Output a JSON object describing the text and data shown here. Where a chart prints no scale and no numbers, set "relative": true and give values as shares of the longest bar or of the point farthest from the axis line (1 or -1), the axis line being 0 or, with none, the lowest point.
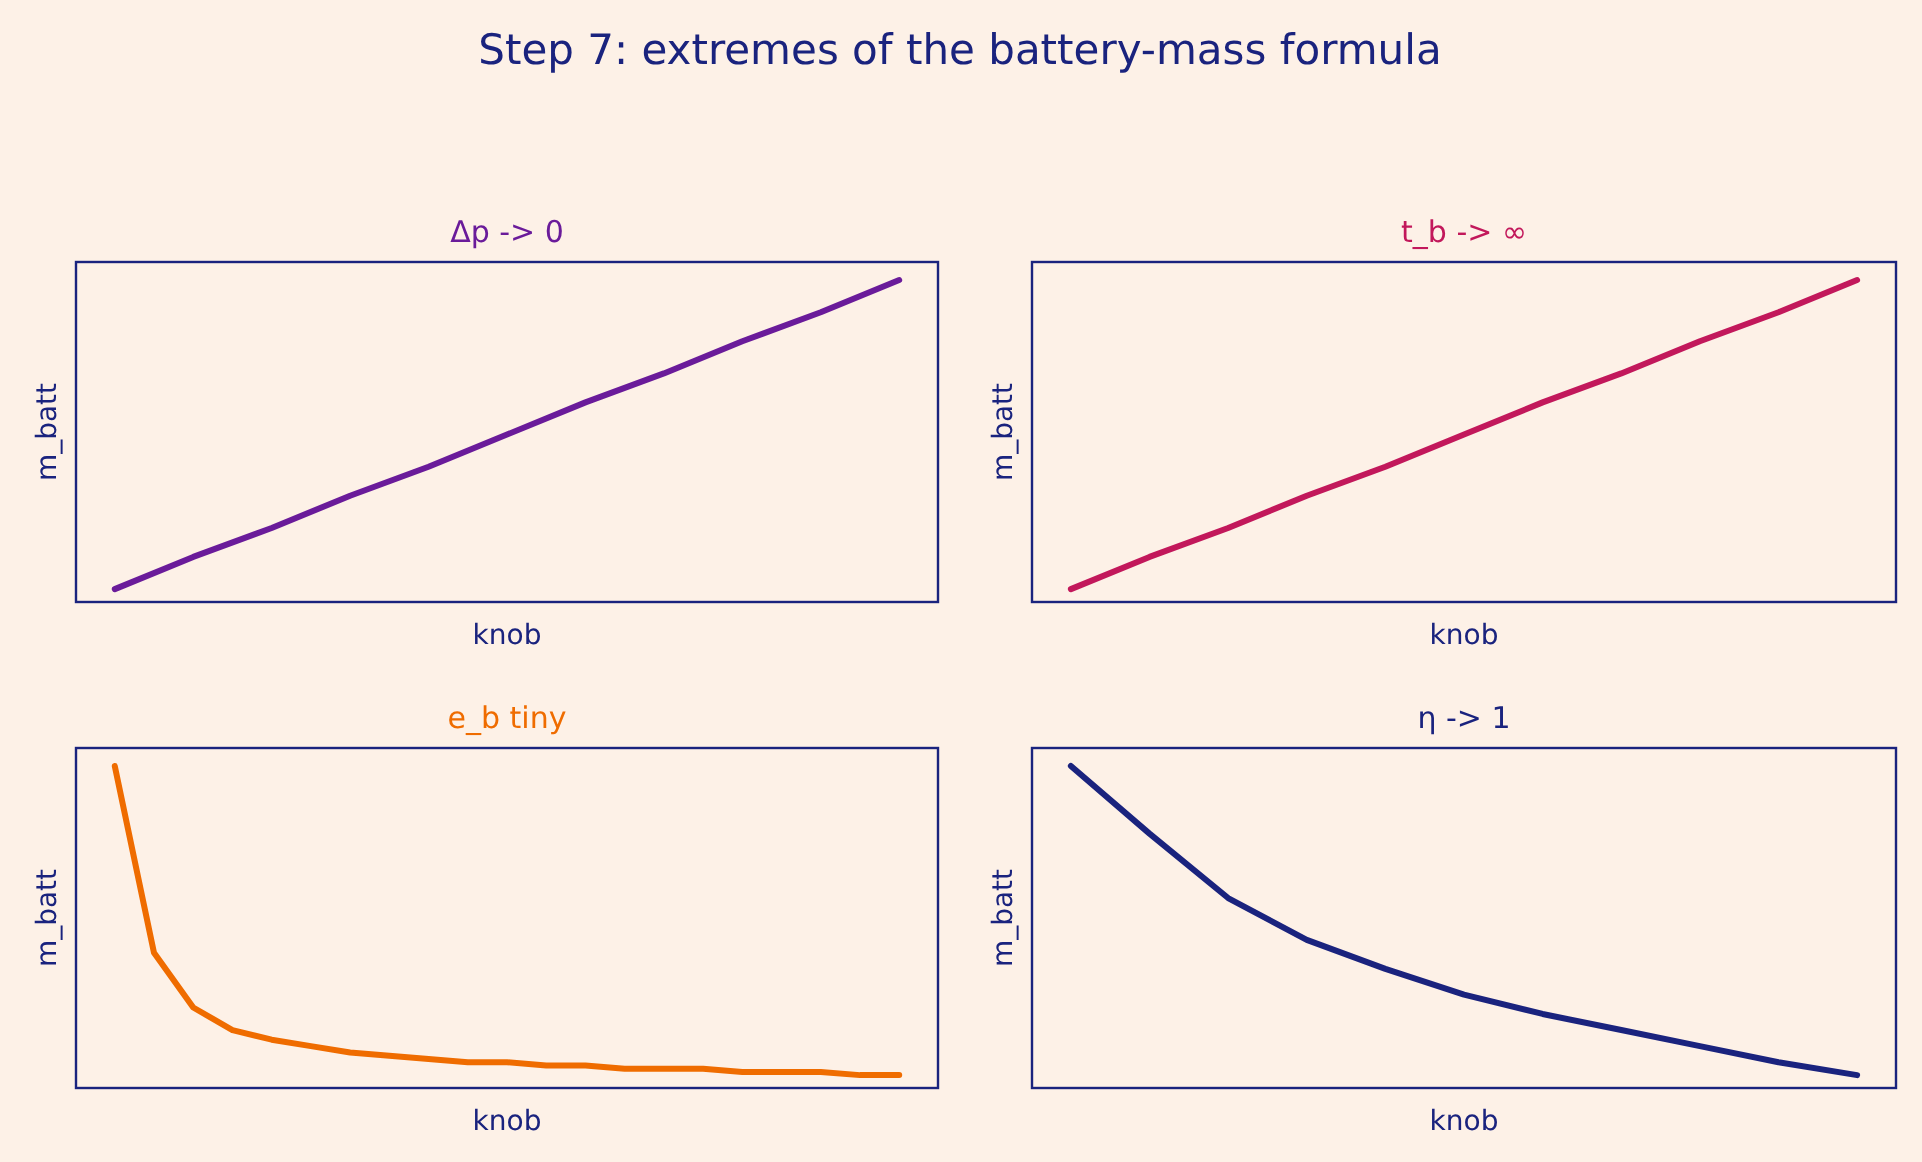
{
  "chart_data": [
    {
      "type": "line",
      "title": "Δp -> 0",
      "xlabel": "knob",
      "ylabel": "m_batt",
      "relative": true,
      "annotations": [
        "Step 7: extremes of the battery-mass formula"
      ],
      "categories": [
        null,
        null,
        null,
        null,
        null,
        null,
        null,
        null,
        null,
        null,
        null
      ],
      "series": [
        {
          "color": "#6a1b9a",
          "values": [
            0.04,
            0.14,
            0.23,
            0.33,
            0.42,
            0.52,
            0.62,
            0.71,
            0.81,
            0.9,
            1
          ]
        }
      ]
    },
    {
      "type": "line",
      "title": "t_b -> ∞",
      "xlabel": "knob",
      "ylabel": "m_batt",
      "relative": true,
      "categories": [
        null,
        null,
        null,
        null,
        null,
        null,
        null,
        null,
        null,
        null,
        null
      ],
      "series": [
        {
          "color": "#c2185b",
          "values": [
            0.04,
            0.14,
            0.23,
            0.33,
            0.42,
            0.52,
            0.62,
            0.71,
            0.81,
            0.9,
            1
          ]
        }
      ]
    },
    {
      "type": "line",
      "title": "e_b tiny",
      "xlabel": "knob",
      "ylabel": "m_batt",
      "relative": true,
      "categories": [
        null,
        null,
        null,
        null,
        null,
        null,
        null,
        null,
        null,
        null,
        null,
        null,
        null,
        null,
        null,
        null,
        null,
        null,
        null,
        null,
        null
      ],
      "series": [
        {
          "color": "#ef6c00",
          "values": [
            1,
            0.42,
            0.25,
            0.18,
            0.15,
            0.13,
            0.11,
            0.1,
            0.09,
            0.08,
            0.08,
            0.07,
            0.07,
            0.06,
            0.06,
            0.06,
            0.05,
            0.05,
            0.05,
            0.04,
            0.04
          ]
        }
      ]
    },
    {
      "type": "line",
      "title": "η -> 1",
      "xlabel": "knob",
      "ylabel": "m_batt",
      "relative": true,
      "categories": [
        null,
        null,
        null,
        null,
        null,
        null,
        null,
        null,
        null,
        null,
        null
      ],
      "series": [
        {
          "color": "#1a237e",
          "values": [
            1,
            0.79,
            0.59,
            0.46,
            0.37,
            0.29,
            0.23,
            0.18,
            0.13,
            0.08,
            0.04
          ]
        }
      ]
    }
  ]
}
